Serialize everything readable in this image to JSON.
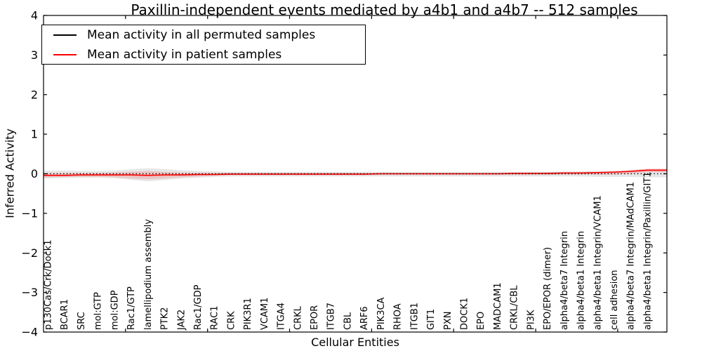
{
  "chart_data": {
    "type": "line",
    "title": "Paxillin-independent events mediated by a4b1 and a4b7 -- 512 samples",
    "xlabel": "Cellular Entities",
    "ylabel": "Inferred Activity",
    "ylim": [
      -4,
      4
    ],
    "yticks": [
      4,
      3,
      2,
      1,
      0,
      -1,
      -2,
      -3,
      -4
    ],
    "grid": false,
    "legend_position": "upper-left",
    "frame_color": "#000000",
    "categories": [
      "p130Cas/Crk/Dock1",
      "BCAR1",
      "SRC",
      "mol:GTP",
      "mol:GDP",
      "Rac1/GTP",
      "lamellipodium assembly",
      "PTK2",
      "JAK2",
      "Rac1/GDP",
      "RAC1",
      "CRK",
      "PIK3R1",
      "VCAM1",
      "ITGA4",
      "CRKL",
      "EPOR",
      "ITGB7",
      "CBL",
      "ARF6",
      "PIK3CA",
      "RHOA",
      "ITGB1",
      "GIT1",
      "PXN",
      "DOCK1",
      "EPO",
      "MADCAM1",
      "CRKL/CBL",
      "PI3K",
      "EPO/EPOR (dimer)",
      "alpha4/beta7 Integrin",
      "alpha4/beta1 Integrin",
      "alpha4/beta1 Integrin/VCAM1",
      "cell adhesion",
      "alpha4/beta7 Integrin/MAdCAM1",
      "alpha4/beta1 Integrin/Paxillin/GIT1"
    ],
    "series": [
      {
        "name": "Mean activity in all permuted samples",
        "color": "#000000",
        "line_style": "dotted",
        "values": [
          0,
          0,
          0,
          0,
          0,
          0,
          0,
          0,
          0,
          0,
          0,
          0,
          0,
          0,
          0,
          0,
          0,
          0,
          0,
          0,
          0,
          0,
          0,
          0,
          0,
          0,
          0,
          0,
          0,
          0,
          0,
          0,
          0,
          0,
          0,
          0,
          0
        ]
      },
      {
        "name": "Mean activity in patient samples",
        "color": "#ff0000",
        "line_style": "solid",
        "values": [
          -0.04,
          -0.04,
          -0.03,
          -0.03,
          -0.03,
          -0.03,
          -0.04,
          -0.03,
          -0.03,
          -0.02,
          -0.02,
          -0.01,
          -0.01,
          -0.01,
          -0.01,
          -0.01,
          -0.01,
          -0.01,
          -0.01,
          -0.01,
          0,
          0,
          0,
          0,
          0,
          0,
          0,
          0,
          0.01,
          0.01,
          0.01,
          0.02,
          0.02,
          0.03,
          0.04,
          0.06,
          0.09
        ]
      }
    ],
    "bands": [
      {
        "name": "permuted-samples-spread",
        "color": "#555555",
        "opacity": 0.14,
        "upper": [
          0.08,
          0.08,
          0.07,
          0.07,
          0.08,
          0.11,
          0.14,
          0.12,
          0.09,
          0.07,
          0.06,
          0.05,
          0.05,
          0.05,
          0.05,
          0.05,
          0.05,
          0.05,
          0.05,
          0.05,
          0.05,
          0.05,
          0.05,
          0.05,
          0.05,
          0.05,
          0.05,
          0.05,
          0.05,
          0.05,
          0.05,
          0.06,
          0.06,
          0.07,
          0.07,
          0.09,
          0.12
        ],
        "lower": [
          -0.12,
          -0.11,
          -0.1,
          -0.1,
          -0.11,
          -0.15,
          -0.19,
          -0.16,
          -0.12,
          -0.1,
          -0.08,
          -0.07,
          -0.07,
          -0.07,
          -0.07,
          -0.07,
          -0.07,
          -0.07,
          -0.07,
          -0.07,
          -0.07,
          -0.07,
          -0.07,
          -0.07,
          -0.07,
          -0.07,
          -0.07,
          -0.07,
          -0.07,
          -0.07,
          -0.07,
          -0.07,
          -0.07,
          -0.08,
          -0.08,
          -0.08,
          -0.09
        ]
      },
      {
        "name": "patient-samples-spread",
        "color": "#ff0000",
        "opacity": 0.15,
        "upper": [
          0.02,
          0.02,
          0.02,
          0.02,
          0.03,
          0.05,
          0.07,
          0.05,
          0.03,
          0.02,
          0.02,
          0.02,
          0.02,
          0.02,
          0.02,
          0.02,
          0.02,
          0.02,
          0.02,
          0.02,
          0.02,
          0.02,
          0.02,
          0.02,
          0.02,
          0.02,
          0.02,
          0.02,
          0.02,
          0.02,
          0.03,
          0.03,
          0.04,
          0.04,
          0.05,
          0.08,
          0.13
        ],
        "lower": [
          -0.09,
          -0.08,
          -0.08,
          -0.08,
          -0.09,
          -0.12,
          -0.14,
          -0.12,
          -0.09,
          -0.07,
          -0.05,
          -0.04,
          -0.04,
          -0.04,
          -0.04,
          -0.04,
          -0.04,
          -0.04,
          -0.04,
          -0.04,
          -0.03,
          -0.03,
          -0.03,
          -0.03,
          -0.03,
          -0.03,
          -0.03,
          -0.03,
          -0.03,
          -0.03,
          -0.03,
          -0.02,
          -0.02,
          -0.02,
          -0.02,
          0.0,
          0.04
        ]
      }
    ],
    "legend": {
      "entries": [
        {
          "label": "Mean activity in all permuted samples",
          "color": "#000000"
        },
        {
          "label": "Mean activity in patient samples",
          "color": "#ff0000"
        }
      ]
    }
  }
}
